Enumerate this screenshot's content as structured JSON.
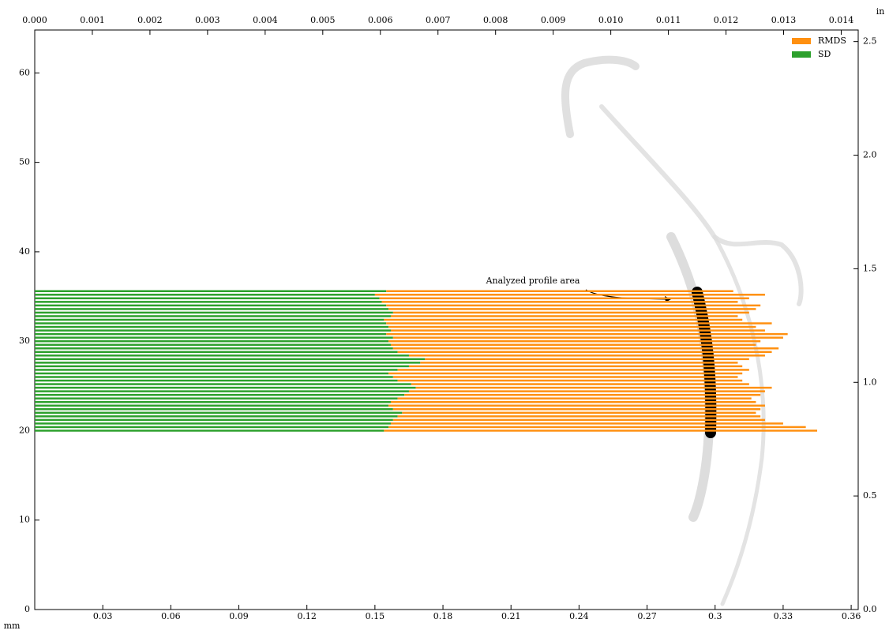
{
  "chart_data": {
    "type": "stacked-barh",
    "annotation": "Analyzed profile area",
    "x_unit": "mm",
    "x2_unit": "in",
    "y": [
      20.0,
      20.4,
      20.8,
      21.2,
      21.6,
      22.0,
      22.4,
      22.8,
      23.2,
      23.6,
      24.0,
      24.4,
      24.8,
      25.2,
      25.6,
      26.0,
      26.4,
      26.8,
      27.2,
      27.6,
      28.0,
      28.4,
      28.8,
      29.2,
      29.6,
      30.0,
      30.4,
      30.8,
      31.2,
      31.6,
      32.0,
      32.4,
      32.8,
      33.2,
      33.6,
      34.0,
      34.4,
      34.8,
      35.2,
      35.6
    ],
    "series": [
      {
        "name": "SD",
        "color": "#2ca02c",
        "values": [
          0.154,
          0.156,
          0.157,
          0.158,
          0.16,
          0.162,
          0.158,
          0.156,
          0.157,
          0.16,
          0.163,
          0.165,
          0.168,
          0.166,
          0.16,
          0.158,
          0.156,
          0.16,
          0.165,
          0.17,
          0.172,
          0.165,
          0.16,
          0.158,
          0.157,
          0.156,
          0.158,
          0.155,
          0.157,
          0.156,
          0.155,
          0.154,
          0.157,
          0.158,
          0.156,
          0.155,
          0.153,
          0.152,
          0.15,
          0.155
        ]
      },
      {
        "name": "RMDS",
        "color": "#ff9010",
        "values": [
          0.191,
          0.184,
          0.173,
          0.164,
          0.16,
          0.156,
          0.162,
          0.166,
          0.161,
          0.156,
          0.157,
          0.157,
          0.157,
          0.149,
          0.152,
          0.152,
          0.156,
          0.155,
          0.147,
          0.14,
          0.143,
          0.157,
          0.165,
          0.17,
          0.161,
          0.164,
          0.172,
          0.177,
          0.165,
          0.162,
          0.17,
          0.158,
          0.153,
          0.157,
          0.162,
          0.165,
          0.157,
          0.163,
          0.172,
          0.153
        ]
      }
    ],
    "xlim": [
      0,
      0.3631
    ],
    "xticks": [
      0.03,
      0.06,
      0.09,
      0.12,
      0.15,
      0.18,
      0.21,
      0.24,
      0.27,
      0.3,
      0.33,
      0.36
    ],
    "x2lim": [
      0,
      0.014295
    ],
    "x2ticks": [
      {
        "value": 0,
        "label": "0.000"
      },
      {
        "value": 0.001,
        "label": "0.001"
      },
      {
        "value": 0.002,
        "label": "0.002"
      },
      {
        "value": 0.003,
        "label": "0.003"
      },
      {
        "value": 0.004,
        "label": "0.004"
      },
      {
        "value": 0.005,
        "label": "0.005"
      },
      {
        "value": 0.006,
        "label": "0.006"
      },
      {
        "value": 0.007,
        "label": "0.007"
      },
      {
        "value": 0.008,
        "label": "0.008"
      },
      {
        "value": 0.009,
        "label": "0.009"
      },
      {
        "value": 0.01,
        "label": "0.010"
      },
      {
        "value": 0.011,
        "label": "0.011"
      },
      {
        "value": 0.012,
        "label": "0.012"
      },
      {
        "value": 0.013,
        "label": "0.013"
      },
      {
        "value": 0.014,
        "label": "0.014"
      }
    ],
    "ylim": [
      0,
      64.8
    ],
    "yticks": [
      0,
      10,
      20,
      30,
      40,
      50,
      60
    ],
    "y2lim": [
      0,
      2.551
    ],
    "y2ticks": [
      {
        "value": 0,
        "label": "0.0"
      },
      0.5,
      {
        "value": 1,
        "label": "1.0"
      },
      1.5,
      {
        "value": 2,
        "label": "2.0"
      },
      2.5
    ],
    "legend": "upper right"
  }
}
